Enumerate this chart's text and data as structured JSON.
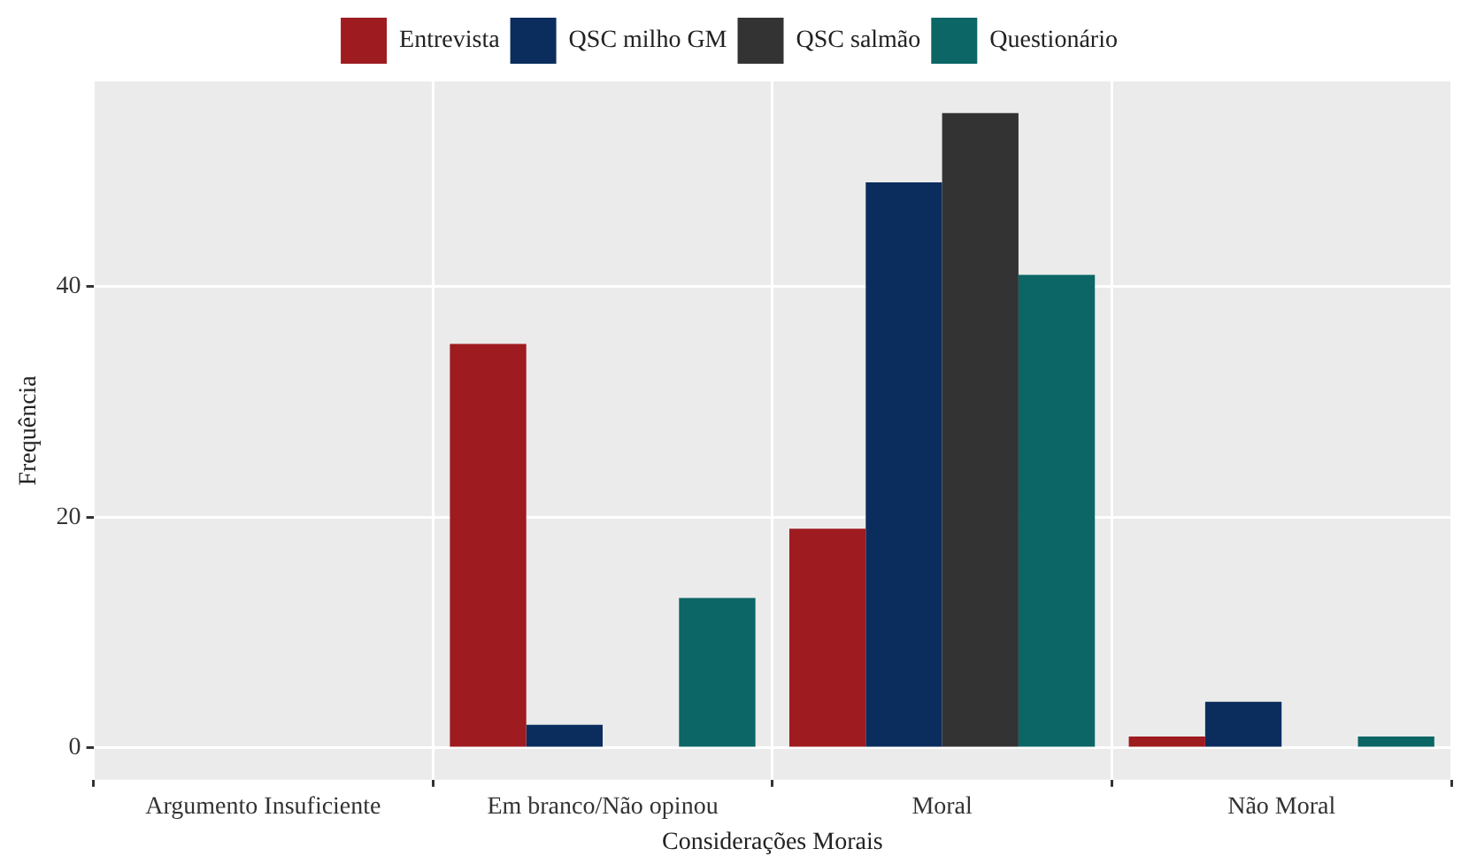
{
  "chart_data": {
    "type": "bar",
    "xlabel": "Considerações Morais",
    "ylabel": "Frequência",
    "categories": [
      "Argumento Insuficiente",
      "Em branco/Não opinou",
      "Moral",
      "Não Moral"
    ],
    "series": [
      {
        "name": "Entrevista",
        "color": "#9e1b20",
        "values": [
          0,
          35,
          19,
          1
        ]
      },
      {
        "name": "QSC milho GM",
        "color": "#0b2d5e",
        "values": [
          0,
          2,
          49,
          4
        ]
      },
      {
        "name": "QSC salmão",
        "color": "#333333",
        "values": [
          0,
          0,
          55,
          0
        ]
      },
      {
        "name": "Questionário",
        "color": "#0b6665",
        "values": [
          0,
          13,
          41,
          1
        ]
      }
    ],
    "ylim": [
      -2.75,
      57.75
    ],
    "yticks": [
      0,
      20,
      40
    ],
    "grid": true,
    "legend": "top"
  }
}
